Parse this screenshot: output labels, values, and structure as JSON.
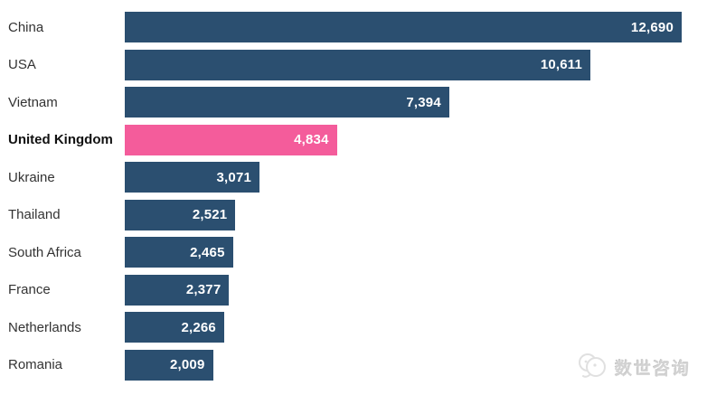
{
  "chart_data": {
    "type": "bar",
    "orientation": "horizontal",
    "categories": [
      "China",
      "USA",
      "Vietnam",
      "United Kingdom",
      "Ukraine",
      "Thailand",
      "South Africa",
      "France",
      "Netherlands",
      "Romania"
    ],
    "values": [
      12690,
      10611,
      7394,
      4834,
      3071,
      2521,
      2465,
      2377,
      2266,
      2009
    ],
    "values_formatted": [
      "12,690",
      "10,611",
      "7,394",
      "4,834",
      "3,071",
      "2,521",
      "2,465",
      "2,377",
      "2,266",
      "2,009"
    ],
    "highlight_index": 3,
    "bar_color": "#2B4F70",
    "highlight_color": "#F45C9B",
    "value_label_color": "#FFFFFF",
    "xlim": [
      0,
      12690
    ],
    "grid": false,
    "legend": false,
    "value_labels_position": "inside-end"
  },
  "watermark": {
    "text": "数世咨询",
    "logo": "dual-chat-bubble-fish-logo"
  }
}
